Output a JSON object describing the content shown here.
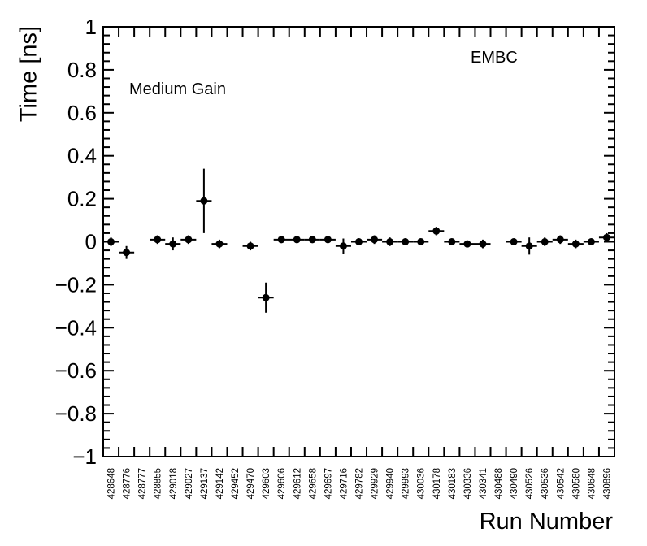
{
  "chart_data": {
    "type": "scatter",
    "title": "",
    "ylabel": "Time [ns]",
    "xlabel": "Run Number",
    "annotations": {
      "gain_label": "Medium Gain",
      "detector_label": "EMBC"
    },
    "ylim": [
      -1,
      1
    ],
    "y_tick_step": 0.2,
    "y_minor_step": 0.04,
    "y_tick_labels": [
      "1",
      "0.8",
      "0.6",
      "0.4",
      "0.2",
      "0",
      "−0.2",
      "−0.4",
      "−0.6",
      "−0.8",
      "−1"
    ],
    "grid": false,
    "legend": "none",
    "marker": "filled-circle",
    "color": "#000000",
    "categories": [
      "428648",
      "428776",
      "428777",
      "428855",
      "429018",
      "429027",
      "429137",
      "429142",
      "429452",
      "429470",
      "429603",
      "429606",
      "429612",
      "429658",
      "429697",
      "429716",
      "429782",
      "429929",
      "429940",
      "429993",
      "430036",
      "430178",
      "430183",
      "430336",
      "430341",
      "430488",
      "430490",
      "430526",
      "430536",
      "430542",
      "430580",
      "430648",
      "430896"
    ],
    "values": [
      0.0,
      -0.05,
      null,
      0.01,
      -0.01,
      0.01,
      0.19,
      -0.01,
      null,
      -0.02,
      -0.26,
      0.01,
      0.01,
      0.01,
      0.01,
      -0.02,
      0.0,
      0.01,
      0.0,
      0.0,
      0.0,
      0.05,
      0.0,
      -0.01,
      -0.01,
      null,
      0.0,
      -0.02,
      0.0,
      0.01,
      -0.01,
      0.0,
      0.02
    ],
    "yerrors": [
      0.02,
      0.03,
      null,
      0.02,
      0.03,
      0.02,
      0.15,
      0.02,
      null,
      0.02,
      0.07,
      0.015,
      0.015,
      0.015,
      0.015,
      0.035,
      0.015,
      0.02,
      0.02,
      0.015,
      0.015,
      0.02,
      0.015,
      0.015,
      0.02,
      null,
      0.015,
      0.04,
      0.02,
      0.02,
      0.02,
      0.015,
      0.02
    ]
  }
}
